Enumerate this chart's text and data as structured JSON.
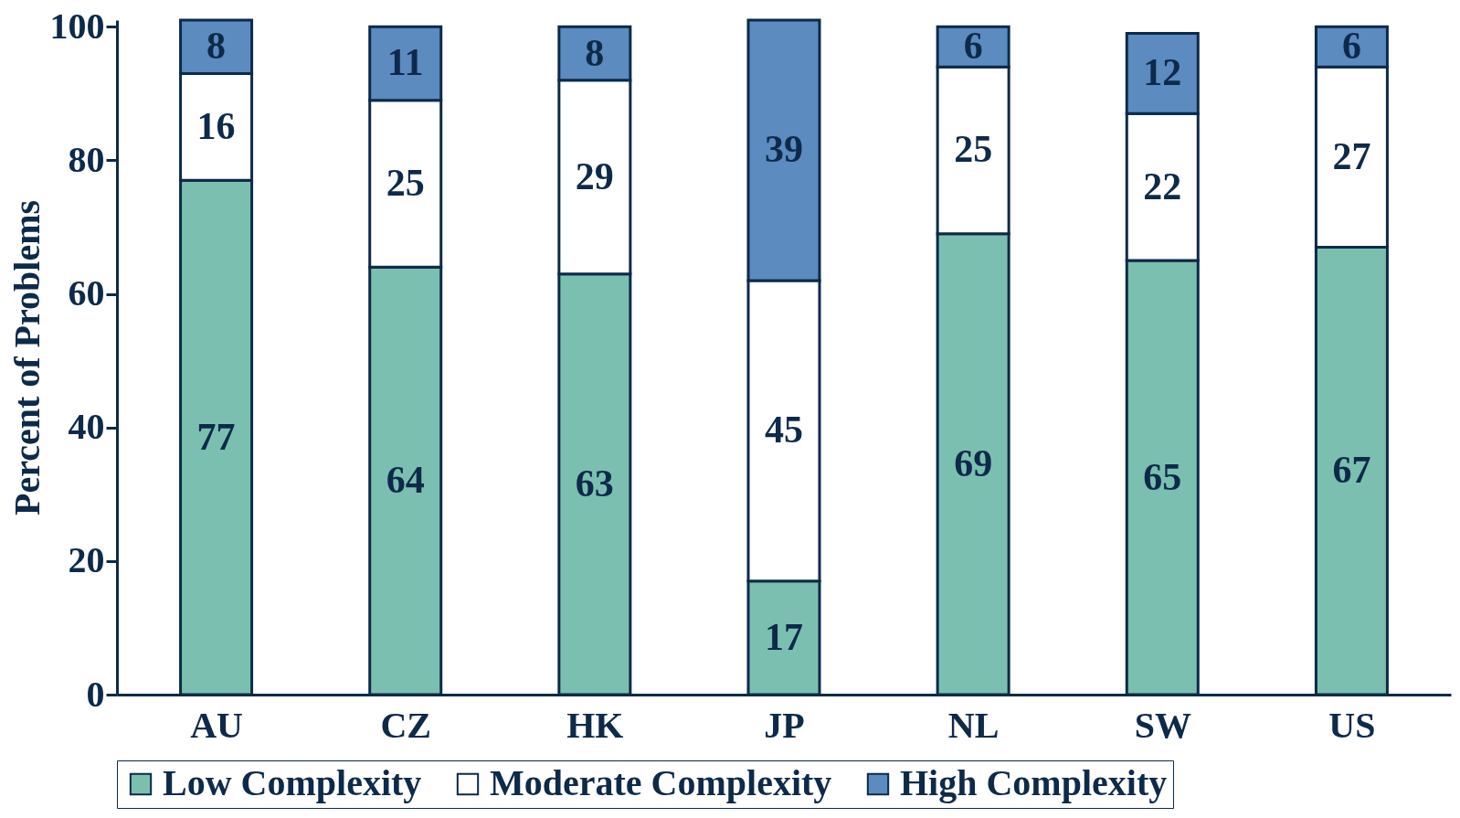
{
  "chart_data": {
    "type": "bar",
    "ylabel": "Percent of Problems",
    "categories": [
      "AU",
      "CZ",
      "HK",
      "JP",
      "NL",
      "SW",
      "US"
    ],
    "series": [
      {
        "name": "Low Complexity",
        "color": "#7bbfb0",
        "values": [
          77,
          64,
          63,
          17,
          69,
          65,
          67
        ]
      },
      {
        "name": "Moderate Complexity",
        "color": "#ffffff",
        "values": [
          16,
          25,
          29,
          45,
          25,
          22,
          27
        ]
      },
      {
        "name": "High Complexity",
        "color": "#5b8bbf",
        "values": [
          8,
          11,
          8,
          39,
          6,
          12,
          6
        ]
      }
    ],
    "stacked": true,
    "data_labels": true,
    "ylim": [
      0,
      101
    ],
    "yticks": [
      0,
      20,
      40,
      60,
      80,
      100
    ],
    "grid": false,
    "legend": "bottom"
  }
}
